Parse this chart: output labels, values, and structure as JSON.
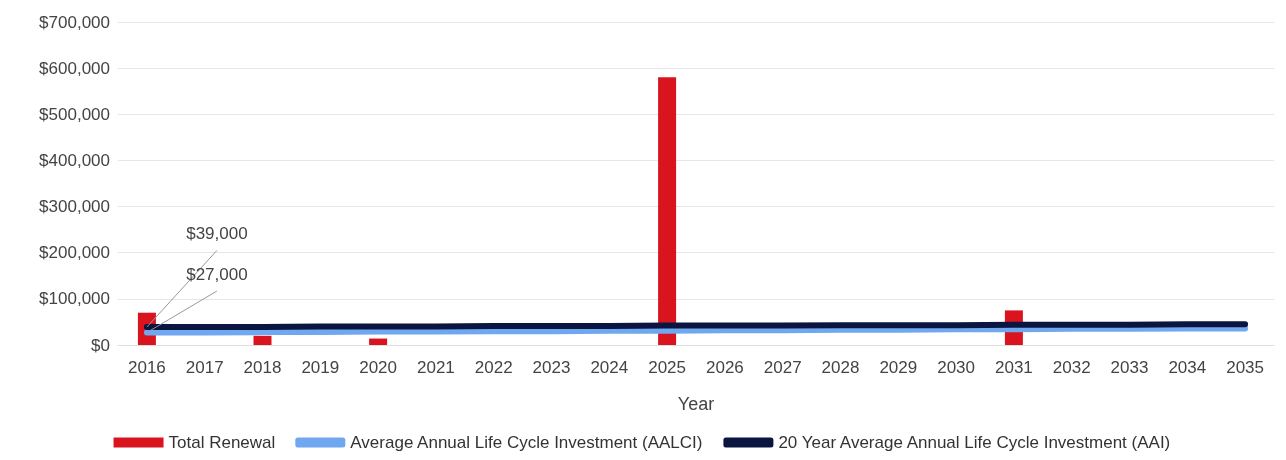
{
  "chart_data": {
    "type": "bar",
    "xlabel": "Year",
    "categories": [
      "2016",
      "2017",
      "2018",
      "2019",
      "2020",
      "2021",
      "2022",
      "2023",
      "2024",
      "2025",
      "2026",
      "2027",
      "2028",
      "2029",
      "2030",
      "2031",
      "2032",
      "2033",
      "2034",
      "2035"
    ],
    "series": [
      {
        "name": "Total Renewal",
        "color": "#d9141e",
        "values": [
          70000,
          null,
          20000,
          null,
          14000,
          null,
          null,
          null,
          null,
          580000,
          null,
          null,
          null,
          null,
          null,
          75000,
          null,
          null,
          null,
          null
        ]
      },
      {
        "name": "Average Annual Life Cycle Investment (AALCI)",
        "type": "line",
        "color": "#6fa8f0",
        "values": [
          27000,
          27000,
          28000,
          28000,
          29000,
          29000,
          30000,
          30000,
          31000,
          31000,
          32000,
          32000,
          33000,
          33000,
          34000,
          34000,
          35000,
          35000,
          36000,
          36000
        ],
        "value_labels": [
          "$27,000",
          null,
          null,
          null,
          null,
          null,
          null,
          null,
          null,
          null,
          null,
          null,
          null,
          null,
          null,
          null,
          null,
          null,
          null,
          null
        ]
      },
      {
        "name": "20 Year Average Annual Life Cycle Investment (AAI)",
        "type": "line",
        "color": "#0b1640",
        "values": [
          39000,
          39000,
          39000,
          40000,
          40000,
          40000,
          41000,
          41000,
          41000,
          42000,
          42000,
          42000,
          43000,
          43000,
          43000,
          44000,
          44000,
          44000,
          45000,
          45000
        ],
        "value_labels": [
          "$39,000",
          null,
          null,
          null,
          null,
          null,
          null,
          null,
          null,
          null,
          null,
          null,
          null,
          null,
          null,
          null,
          null,
          null,
          null,
          null
        ]
      }
    ],
    "ylim": [
      0,
      700000
    ],
    "yticks": [
      {
        "value": 0,
        "label": "$0"
      },
      {
        "value": 100000,
        "label": "$100,000"
      },
      {
        "value": 200000,
        "label": "$200,000"
      },
      {
        "value": 300000,
        "label": "$300,000"
      },
      {
        "value": 400000,
        "label": "$400,000"
      },
      {
        "value": 500000,
        "label": "$500,000"
      },
      {
        "value": 600000,
        "label": "$600,000"
      },
      {
        "value": 700000,
        "label": "$700,000"
      }
    ],
    "grid": "y",
    "legend": "bottom",
    "marker": "none",
    "line_style": "solid"
  }
}
